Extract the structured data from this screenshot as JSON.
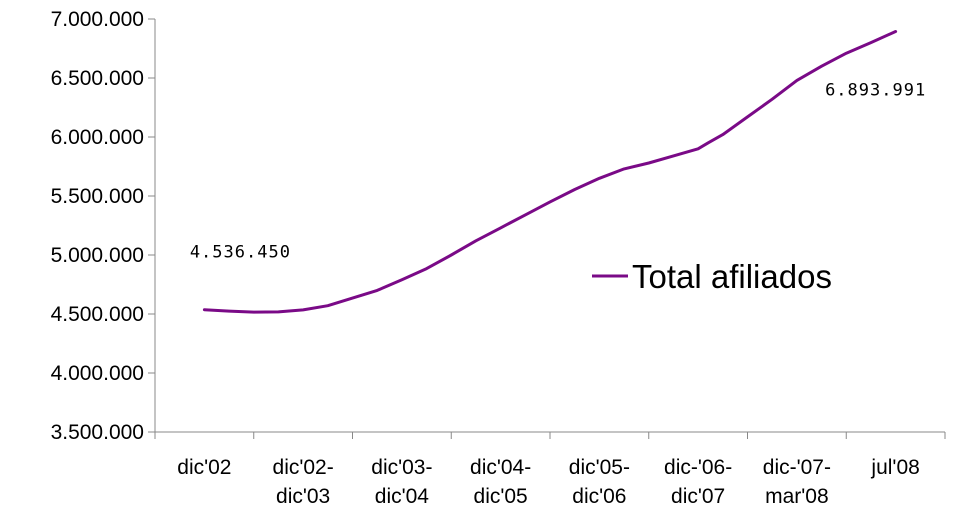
{
  "chart_data": {
    "type": "line",
    "title": "",
    "xlabel": "",
    "ylabel": "",
    "ylim": [
      3500000,
      7000000
    ],
    "yticks": [
      "3.500.000",
      "4.000.000",
      "4.500.000",
      "5.000.000",
      "5.500.000",
      "6.000.000",
      "6.500.000",
      "7.000.000"
    ],
    "yticks_values": [
      3500000,
      4000000,
      4500000,
      5000000,
      5500000,
      6000000,
      6500000,
      7000000
    ],
    "categories": [
      [
        "dic'02"
      ],
      [
        "dic'02-",
        "dic'03"
      ],
      [
        "dic'03-",
        "dic'04"
      ],
      [
        "dic'04-",
        "dic'05"
      ],
      [
        "dic'05-",
        "dic'06"
      ],
      [
        "dic-'06-",
        "dic'07"
      ],
      [
        "dic-'07-",
        "mar'08"
      ],
      [
        "jul'08"
      ]
    ],
    "series": [
      {
        "name": "Total afiliados",
        "color": "#7a0a87",
        "points": [
          [
            0.0,
            4536450
          ],
          [
            0.25,
            4525000
          ],
          [
            0.5,
            4516000
          ],
          [
            0.75,
            4518000
          ],
          [
            1.0,
            4535000
          ],
          [
            1.25,
            4570000
          ],
          [
            1.5,
            4635000
          ],
          [
            1.75,
            4700000
          ],
          [
            2.0,
            4790000
          ],
          [
            2.25,
            4885000
          ],
          [
            2.5,
            5000000
          ],
          [
            2.75,
            5120000
          ],
          [
            3.0,
            5230000
          ],
          [
            3.25,
            5340000
          ],
          [
            3.5,
            5450000
          ],
          [
            3.75,
            5555000
          ],
          [
            4.0,
            5650000
          ],
          [
            4.25,
            5730000
          ],
          [
            4.5,
            5780000
          ],
          [
            4.75,
            5840000
          ],
          [
            5.0,
            5900000
          ],
          [
            5.1,
            5950000
          ],
          [
            5.25,
            6020000
          ],
          [
            5.5,
            6170000
          ],
          [
            5.75,
            6320000
          ],
          [
            6.0,
            6480000
          ],
          [
            6.25,
            6600000
          ],
          [
            6.5,
            6710000
          ],
          [
            6.75,
            6800000
          ],
          [
            7.0,
            6893991
          ]
        ]
      }
    ],
    "data_labels": [
      {
        "text": "4.536.450",
        "x": 0,
        "y": 4536450
      },
      {
        "text": "6.893.991",
        "x": 7,
        "y": 6893991
      }
    ],
    "legend": {
      "label": "Total afiliados",
      "placement": "right"
    },
    "grid": false
  }
}
